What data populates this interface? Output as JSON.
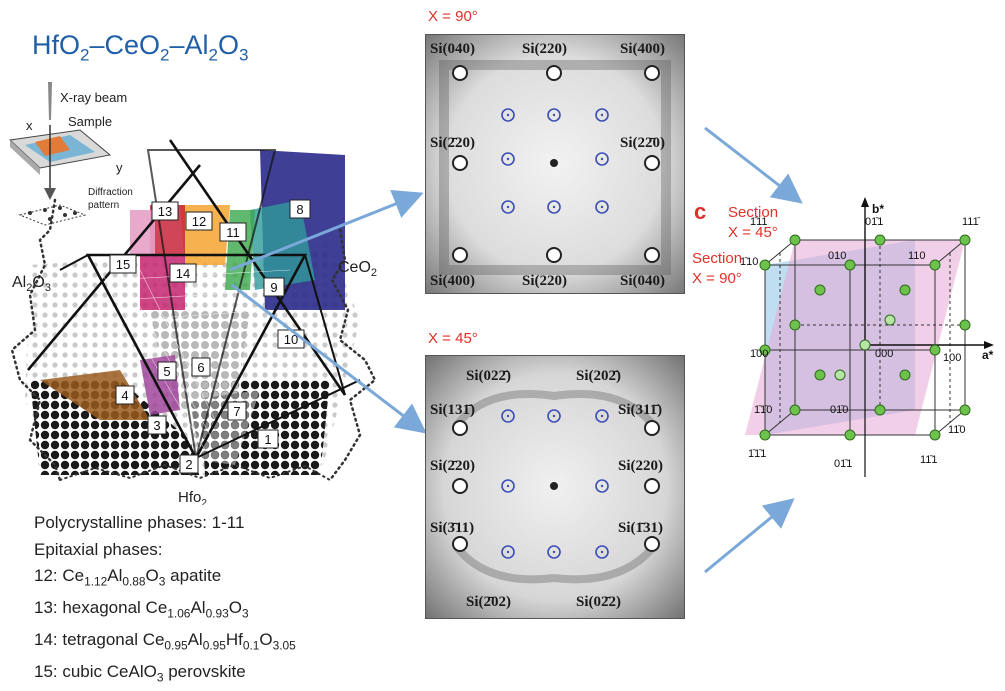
{
  "title": {
    "parts": [
      "HfO",
      "2",
      "–CeO",
      "2",
      "–Al",
      "2",
      "O",
      "3"
    ]
  },
  "ternary": {
    "beam_label": "X-ray beam",
    "sample_label": "Sample",
    "x_axis": "x",
    "y_axis": "y",
    "diffraction_label_1": "Diffraction",
    "diffraction_label_2": "pattern",
    "left_vertex": {
      "base": "Al",
      "s1": "2",
      "mid": "O",
      "s2": "3"
    },
    "right_vertex": {
      "base": "CeO",
      "s1": "2"
    },
    "bottom_vertex": {
      "base": "Hfo",
      "s1": "2"
    },
    "phase_numbers": [
      "1",
      "2",
      "3",
      "4",
      "5",
      "6",
      "7",
      "8",
      "9",
      "10",
      "11",
      "12",
      "13",
      "14",
      "15"
    ]
  },
  "phase_list": {
    "poly": "Polycrystalline phases: 1-11",
    "epi": "Epitaxial phases:",
    "p12": [
      "12: Ce",
      "1.12",
      "Al",
      "0.88",
      "O",
      "3",
      " apatite"
    ],
    "p13": [
      "13: hexagonal Ce",
      "1.06",
      "Al",
      "0.93",
      "O",
      "3"
    ],
    "p14": [
      "14: tetragonal Ce",
      "0.95",
      "Al",
      "0.95",
      "Hf",
      "0.1",
      "O",
      "3.05"
    ],
    "p15": [
      "15: cubic CeAlO",
      "3",
      " perovskite"
    ]
  },
  "panel_top": {
    "label": "X = 90°",
    "si_labels": [
      "Si(040)",
      "Si(220)",
      "Si(400)",
      "Si(2̄20)",
      "Si(22̄0)",
      "Si(400)",
      "Si(220)",
      "Si(040)"
    ]
  },
  "panel_bottom": {
    "label": "X = 45°",
    "si_labels": [
      "Si(022̄)",
      "Si(202̄)",
      "Si(131̄)",
      "Si(311̄)",
      "Si(2̄20)",
      "Si(220)",
      "Si(3̄11)",
      "Si(1̄31)",
      "Si(2̄02)",
      "Si(02̄2)"
    ]
  },
  "cube": {
    "panel_letter": "c",
    "section_45_1": "Section",
    "section_45_2": "X = 45°",
    "section_90_1": "Section",
    "section_90_2": "X = 90°",
    "axis_b": "b*",
    "axis_a": "a*",
    "labels": [
      "1̄11",
      "01̄1",
      "111̄",
      "1̄10",
      "010",
      "110",
      "1̄00",
      "000",
      "100",
      "1̄1̄0",
      "01̄0",
      "11̄0",
      "1̄1̄1",
      "01̄1",
      "11̄1"
    ]
  },
  "colors": {
    "title": "#1f5fa8",
    "accent_red": "#e0302a",
    "arrow": "#7aa8d8",
    "ring": "#3b4fb5",
    "pink_plane": "#e7a8d6",
    "blue_plane": "#a9d3ee",
    "green_node": "#6cc24a"
  }
}
